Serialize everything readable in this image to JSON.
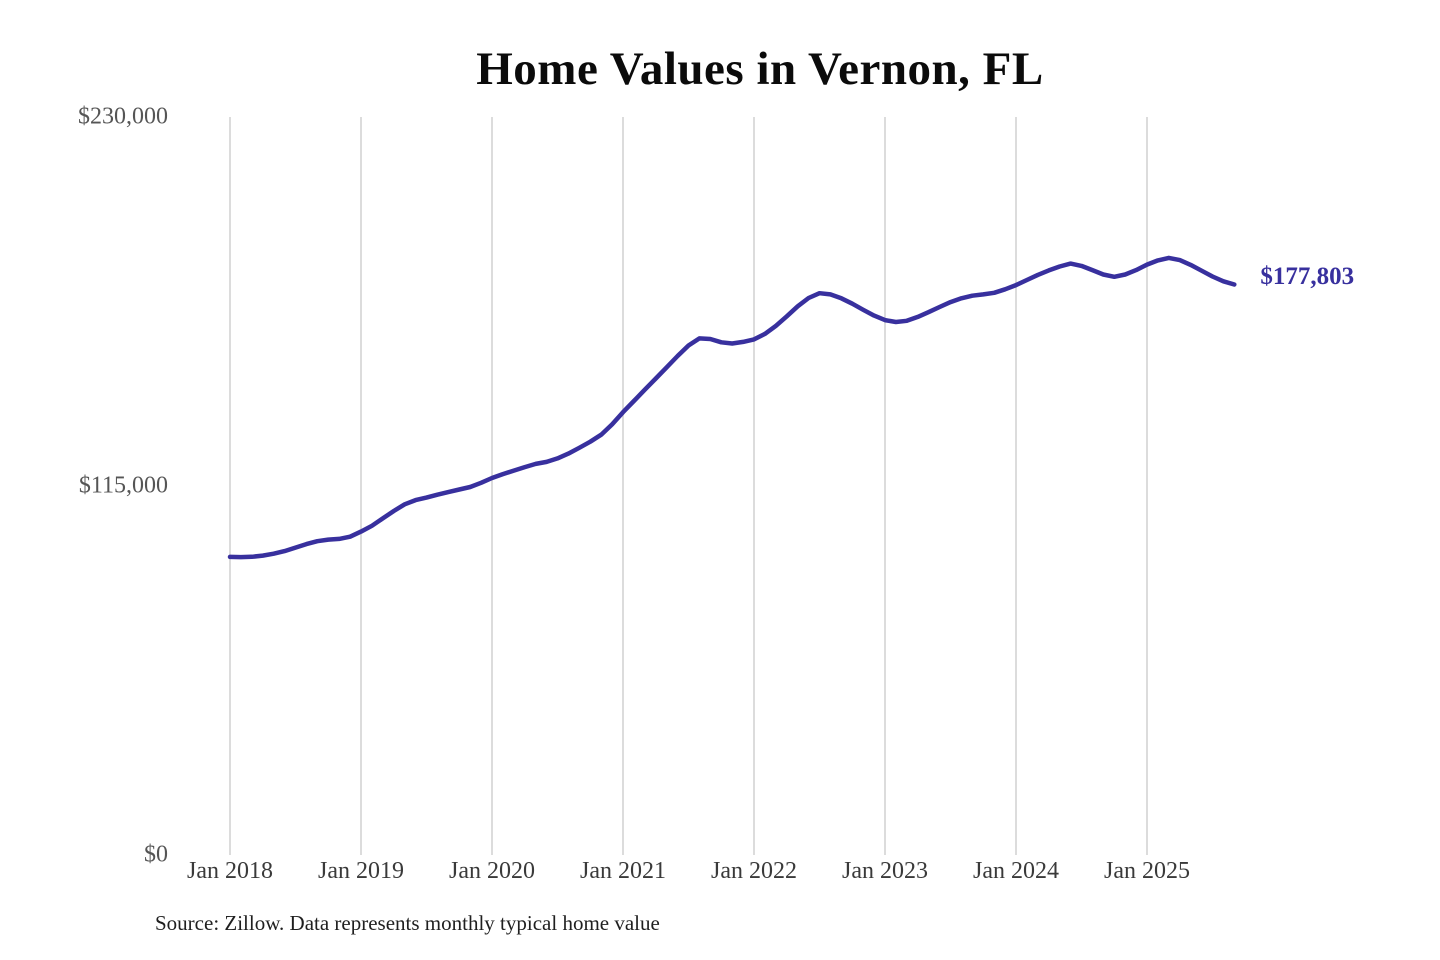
{
  "chart": {
    "colors": {
      "line": "#38309e",
      "end_label": "#38309e",
      "gridline": "#c9c9c9",
      "y_label": "#555555",
      "x_label": "#3a3a3a",
      "title": "#0b0b0b",
      "source": "#1f1f1f",
      "background": "#ffffff"
    }
  },
  "chart_data": {
    "type": "line",
    "title": "Home Values in Vernon, FL",
    "series_name": "Monthly typical home value",
    "x_frequency": "monthly",
    "x_start": "Jan 2018",
    "x_end": "Sep 2025",
    "values": [
      92900,
      92850,
      92950,
      93300,
      93900,
      94700,
      95800,
      96900,
      97800,
      98300,
      98500,
      99200,
      100800,
      102600,
      104900,
      107200,
      109300,
      110600,
      111400,
      112300,
      113100,
      113900,
      114700,
      116000,
      117500,
      118700,
      119800,
      120900,
      121900,
      122500,
      123600,
      125100,
      126900,
      128800,
      131000,
      134200,
      138000,
      141500,
      145000,
      148500,
      152000,
      155500,
      158800,
      161000,
      160800,
      159800,
      159400,
      159900,
      160700,
      162400,
      164900,
      167900,
      171000,
      173600,
      175100,
      174700,
      173500,
      171800,
      169900,
      168100,
      166700,
      166100,
      166500,
      167700,
      169200,
      170800,
      172300,
      173500,
      174300,
      174700,
      175200,
      176300,
      177600,
      179200,
      180800,
      182200,
      183400,
      184300,
      183600,
      182300,
      180900,
      180200,
      180900,
      182300,
      184000,
      185300,
      186100,
      185400,
      183900,
      182100,
      180300,
      178800,
      177803
    ],
    "last_value": 177803,
    "end_label": "$177,803",
    "x_tick_labels": [
      "Jan 2018",
      "Jan 2019",
      "Jan 2020",
      "Jan 2021",
      "Jan 2022",
      "Jan 2023",
      "Jan 2024",
      "Jan 2025"
    ],
    "y_ticks": [
      {
        "label": "$230,000",
        "value": 230000
      },
      {
        "label": "$115,000",
        "value": 115000
      },
      {
        "label": "$0",
        "value": 0
      }
    ],
    "ylim": [
      0,
      230000
    ],
    "grid": "vertical-only",
    "legend": "none",
    "source": "Source: Zillow. Data represents monthly typical home value"
  }
}
